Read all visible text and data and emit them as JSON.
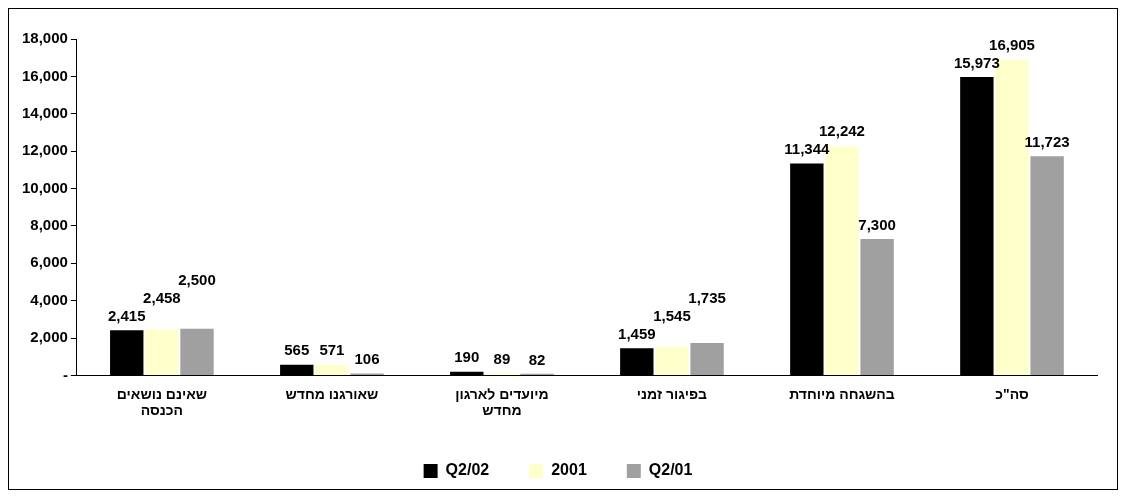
{
  "chart_data": {
    "type": "bar",
    "categories": [
      "שאינם נושאים הכנסה",
      "שאורגנו מחדש",
      "מיועדים לארגון מחדש",
      "בפיגור זמני",
      "בהשגחה מיוחדת",
      "סה\"כ"
    ],
    "series": [
      {
        "name": "Q2/02",
        "color": "#000000",
        "values": [
          2415,
          565,
          190,
          1459,
          11344,
          15973
        ],
        "value_labels": [
          "2,415",
          "565",
          "190",
          "1,459",
          "11,344",
          "15,973"
        ]
      },
      {
        "name": "2001",
        "color": "#ffffcc",
        "values": [
          2458,
          571,
          89,
          1545,
          12242,
          16905
        ],
        "value_labels": [
          "2,458",
          "571",
          "89",
          "1,545",
          "12,242",
          "16,905"
        ]
      },
      {
        "name": "Q2/01",
        "color": "#a0a0a0",
        "values": [
          2500,
          106,
          82,
          1735,
          7300,
          11723
        ],
        "value_labels": [
          "2,500",
          "106",
          "82",
          "1,735",
          "7,300",
          "11,723"
        ]
      }
    ],
    "ylim": [
      0,
      18000
    ],
    "yticks": [
      {
        "value": 0,
        "label": "-"
      },
      {
        "value": 2000,
        "label": "2,000"
      },
      {
        "value": 4000,
        "label": "4,000"
      },
      {
        "value": 6000,
        "label": "6,000"
      },
      {
        "value": 8000,
        "label": "8,000"
      },
      {
        "value": 10000,
        "label": "10,000"
      },
      {
        "value": 12000,
        "label": "12,000"
      },
      {
        "value": 14000,
        "label": "14,000"
      },
      {
        "value": 16000,
        "label": "16,000"
      },
      {
        "value": 18000,
        "label": "18,000"
      }
    ],
    "grid": false,
    "legend": "bottom"
  }
}
